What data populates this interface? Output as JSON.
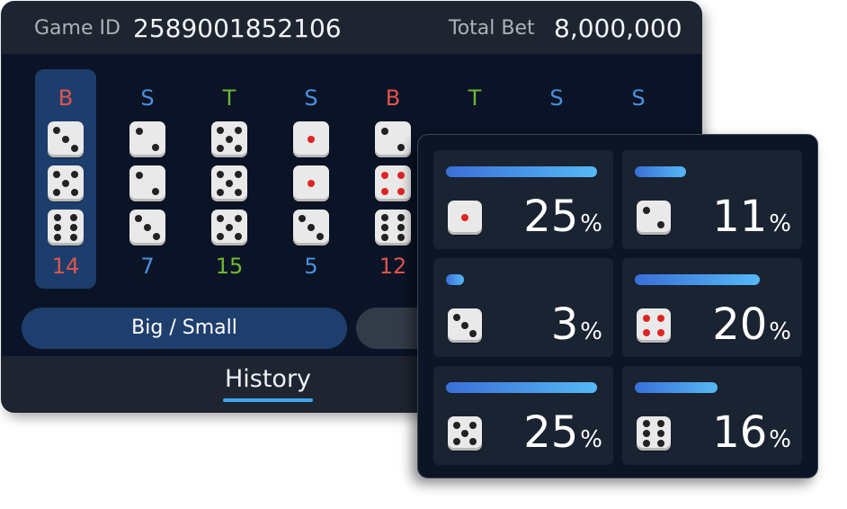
{
  "header": {
    "game_id_label": "Game ID",
    "game_id": "2589001852106",
    "total_bet_label": "Total Bet",
    "total_bet": "8,000,000"
  },
  "history": {
    "columns": [
      {
        "letter": "B",
        "total": "14",
        "color": "red",
        "dice": [
          3,
          5,
          6
        ],
        "red_dice": [
          false,
          false,
          false
        ],
        "selected": true
      },
      {
        "letter": "S",
        "total": "7",
        "color": "blue",
        "dice": [
          2,
          2,
          3
        ],
        "red_dice": [
          false,
          false,
          false
        ],
        "selected": false
      },
      {
        "letter": "T",
        "total": "15",
        "color": "green",
        "dice": [
          5,
          5,
          5
        ],
        "red_dice": [
          false,
          false,
          false
        ],
        "selected": false
      },
      {
        "letter": "S",
        "total": "5",
        "color": "blue",
        "dice": [
          1,
          1,
          3
        ],
        "red_dice": [
          true,
          true,
          false
        ],
        "selected": false
      },
      {
        "letter": "B",
        "total": "12",
        "color": "red",
        "dice": [
          2,
          4,
          6
        ],
        "red_dice": [
          false,
          true,
          false
        ],
        "selected": false
      },
      {
        "letter": "T",
        "total": "",
        "color": "green",
        "dice": [],
        "red_dice": [],
        "selected": false
      },
      {
        "letter": "S",
        "total": "",
        "color": "blue",
        "dice": [],
        "red_dice": [],
        "selected": false
      },
      {
        "letter": "S",
        "total": "",
        "color": "blue",
        "dice": [],
        "red_dice": [],
        "selected": false
      }
    ]
  },
  "buttons": {
    "big_small_label": "Big / Small"
  },
  "footer": {
    "history_tab": "History"
  },
  "stats": {
    "percent_sign": "%",
    "cards": [
      {
        "face": 1,
        "red": true,
        "percent": "25",
        "bar_fraction": 1.0
      },
      {
        "face": 2,
        "red": false,
        "percent": "11",
        "bar_fraction": 0.34
      },
      {
        "face": 3,
        "red": false,
        "percent": "3",
        "bar_fraction": 0.12
      },
      {
        "face": 4,
        "red": true,
        "percent": "20",
        "bar_fraction": 0.83
      },
      {
        "face": 5,
        "red": false,
        "percent": "25",
        "bar_fraction": 1.0
      },
      {
        "face": 6,
        "red": false,
        "percent": "16",
        "bar_fraction": 0.55
      }
    ]
  },
  "colors": {
    "red": "#e0544c",
    "blue": "#4a90e0",
    "green": "#6fb832",
    "accent": "#3fa6f0"
  }
}
